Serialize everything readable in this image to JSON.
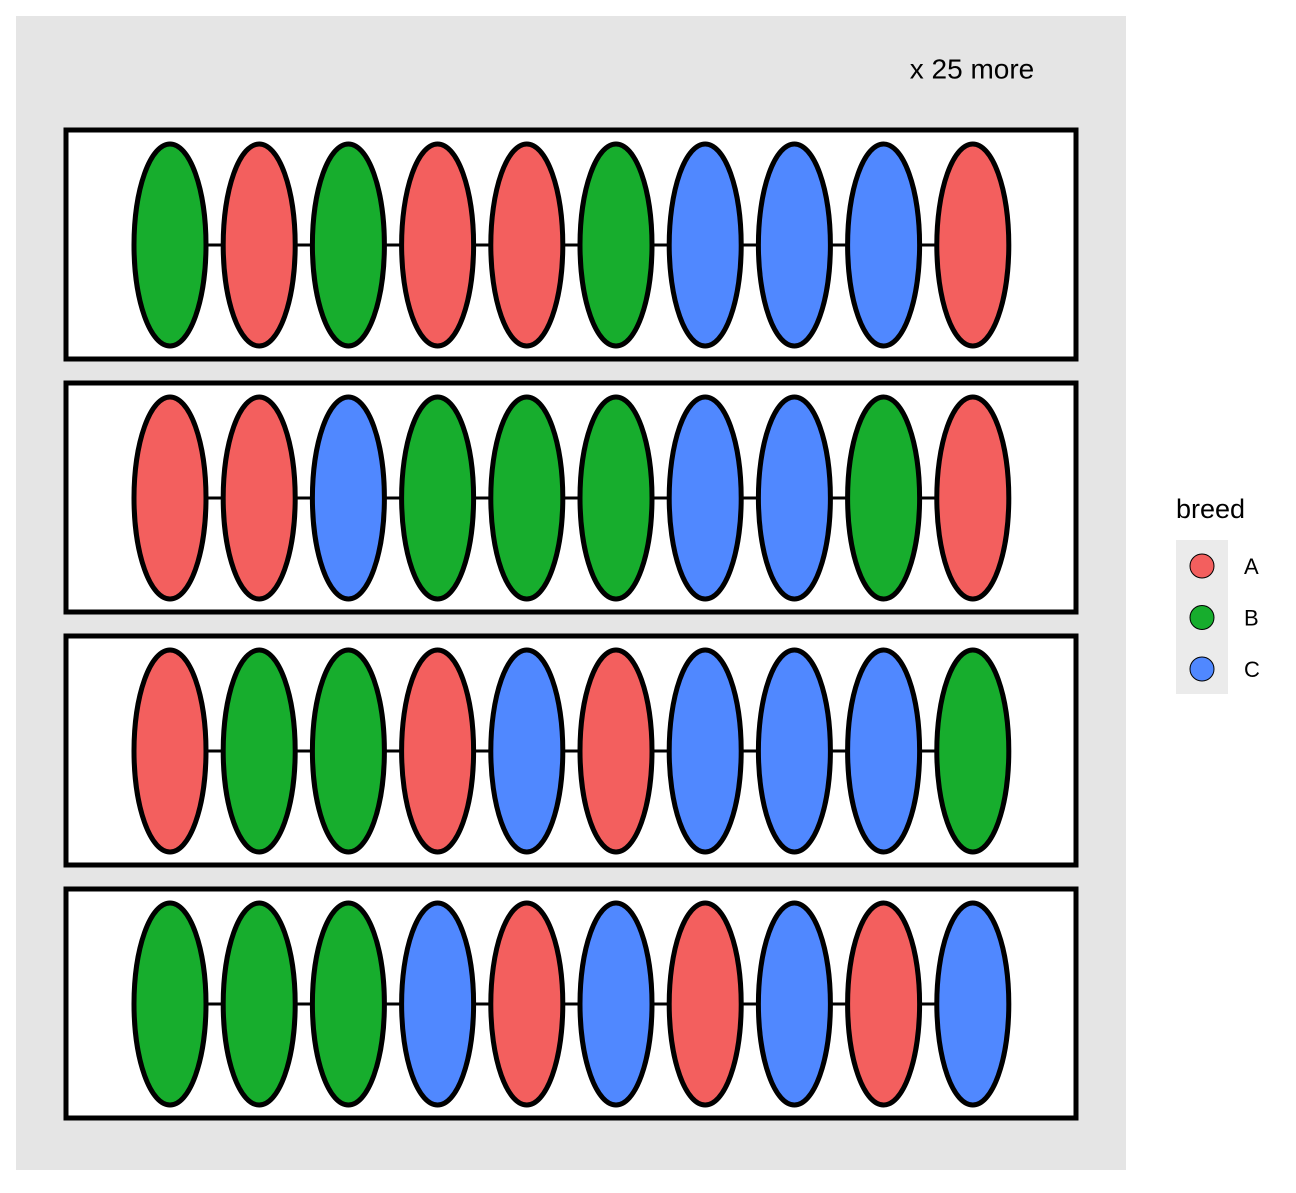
{
  "annotation": "x 25 more",
  "legend": {
    "title": "breed",
    "items": [
      {
        "label": "A",
        "color": "#f35f5e"
      },
      {
        "label": "B",
        "color": "#17ad2d"
      },
      {
        "label": "C",
        "color": "#5088ff"
      }
    ]
  },
  "rows": [
    [
      "B",
      "A",
      "B",
      "A",
      "A",
      "B",
      "C",
      "C",
      "C",
      "A"
    ],
    [
      "A",
      "A",
      "C",
      "B",
      "B",
      "B",
      "C",
      "C",
      "B",
      "A"
    ],
    [
      "A",
      "B",
      "B",
      "A",
      "C",
      "A",
      "C",
      "C",
      "C",
      "B"
    ],
    [
      "B",
      "B",
      "B",
      "C",
      "A",
      "C",
      "A",
      "C",
      "A",
      "C"
    ]
  ]
}
